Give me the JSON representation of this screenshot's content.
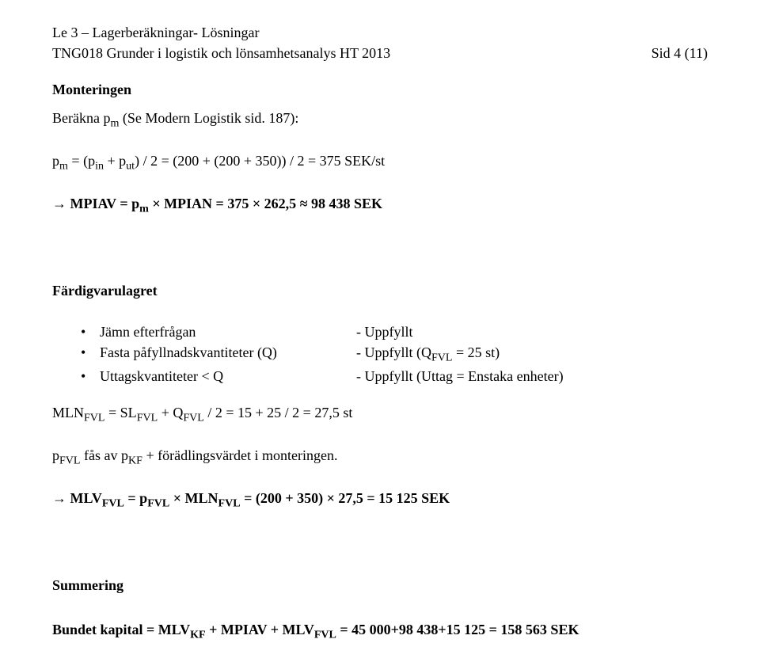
{
  "header": {
    "line1": "Le 3 – Lagerberäkningar- Lösningar",
    "line2": "TNG018 Grunder i logistik och lönsamhetsanalys HT 2013",
    "page": "Sid 4 (11)"
  },
  "sec1_title": "Monteringen",
  "p_intro_pre": "Beräkna p",
  "p_intro_sub": "m",
  "p_intro_post": " (Se Modern Logistik sid. 187):",
  "eq1": {
    "a": "p",
    "as": "m",
    "b": " = (p",
    "bs": "in",
    "c": " + p",
    "cs": "ut",
    "d": ") / 2 = (200 + (200 + 350)) / 2 = 375 SEK/st"
  },
  "eq2": {
    "arrow": "→",
    "a": " MPIAV = p",
    "as": "m",
    "b": " × MPIAN = 375 × 262,5 ≈ 98 438 SEK"
  },
  "sec2_title": "Färdigvarulagret",
  "b1": {
    "l": "Jämn efterfrågan",
    "r": "- Uppfyllt"
  },
  "b2": {
    "l1": "Fasta påfyllnadskvantiteter (Q)",
    "r1": "- Uppfyllt (Q",
    "rs": "FVL",
    "r2": " = 25 st)"
  },
  "b3": {
    "l": "Uttagskvantiteter < Q",
    "r": "- Uppfyllt (Uttag = Enstaka enheter)"
  },
  "eq3": {
    "a": "MLN",
    "as": "FVL",
    "b": " = SL",
    "bs": "FVL",
    "c": " + Q",
    "cs": "FVL",
    "d": " / 2 = 15 + 25 / 2 = 27,5 st"
  },
  "eq4": {
    "a": "p",
    "as": "FVL",
    "b": " fås av p",
    "bs": "KF",
    "c": " + förädlingsvärdet i monteringen."
  },
  "eq5": {
    "arrow": "→",
    "a": " MLV",
    "as": "FVL",
    "b": " = p",
    "bs": "FVL",
    "c": " × MLN",
    "cs": "FVL",
    "d": " = (200 + 350) × 27,5 = 15 125 SEK"
  },
  "sec3_title": "Summering",
  "eq6": {
    "a": "Bundet kapital = MLV",
    "as": "KF",
    "b": " + MPIAV + MLV",
    "bs": "FVL",
    "c": " = 45 000+98 438+15 125 = 158 563 SEK"
  }
}
